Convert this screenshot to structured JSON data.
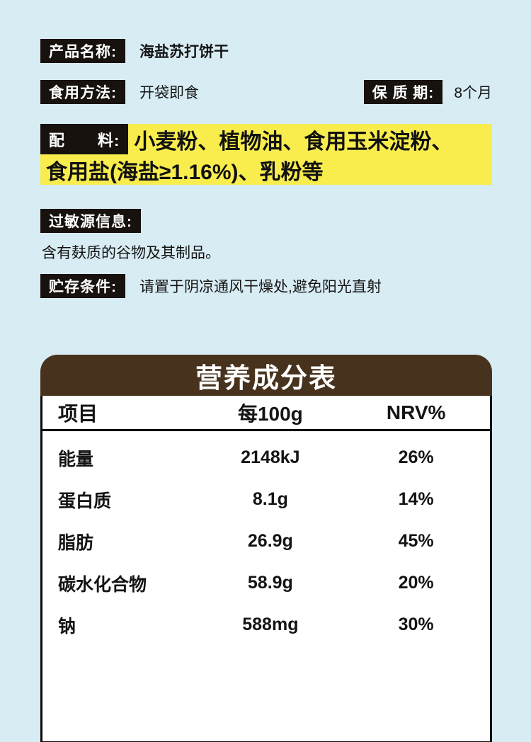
{
  "info": {
    "product_name_label": "产品名称:",
    "product_name_value": "海盐苏打饼干",
    "usage_label": "食用方法:",
    "usage_value": "开袋即食",
    "shelf_life_label": "保 质 期:",
    "shelf_life_value": "8个月",
    "ingredients_label": "配　　料:",
    "ingredients_line1": "小麦粉、植物油、食用玉米淀粉、",
    "ingredients_line2": "食用盐(海盐≥1.16%)、乳粉等",
    "allergen_label": "过敏源信息:",
    "allergen_value": "含有麸质的谷物及其制品。",
    "storage_label": "贮存条件:",
    "storage_value": "请置于阴凉通风干燥处,避免阳光直射"
  },
  "nutrition": {
    "title": "营养成分表",
    "columns": [
      "项目",
      "每100g",
      "NRV%"
    ],
    "rows": [
      {
        "item": "能量",
        "per100g": "2148kJ",
        "nrv": "26%"
      },
      {
        "item": "蛋白质",
        "per100g": "8.1g",
        "nrv": "14%"
      },
      {
        "item": "脂肪",
        "per100g": "26.9g",
        "nrv": "45%"
      },
      {
        "item": "碳水化合物",
        "per100g": "58.9g",
        "nrv": "20%"
      },
      {
        "item": "钠",
        "per100g": "588mg",
        "nrv": "30%"
      }
    ]
  },
  "colors": {
    "background": "#d8ecf4",
    "label_bg": "#17120e",
    "highlight_yellow": "#f8ed4d",
    "table_header_bg": "#47321d",
    "table_border": "#0c0a08",
    "text": "#141414"
  }
}
